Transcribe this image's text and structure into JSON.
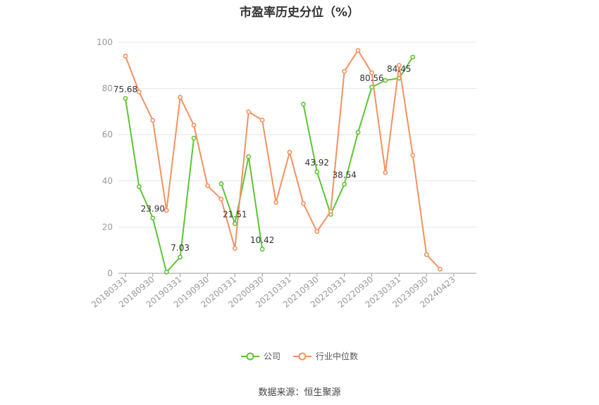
{
  "chart_data": {
    "type": "line",
    "title": "市盈率历史分位（%）",
    "x": [
      "20180331",
      "20180630",
      "20180930",
      "20181231",
      "20190331",
      "20190630",
      "20190930",
      "20191231",
      "20200331",
      "20200630",
      "20200930",
      "20201231",
      "20210331",
      "20210630",
      "20210930",
      "20211231",
      "20220331",
      "20220630",
      "20220930",
      "20221231",
      "20230331",
      "20230630",
      "20230930",
      "20231231",
      "20240423"
    ],
    "xtick_labels": [
      "20180331",
      "20180930",
      "20190331",
      "20190930",
      "20200331",
      "20200930",
      "20210331",
      "20210930",
      "20220331",
      "20220930",
      "20230331",
      "20230930",
      "20240423"
    ],
    "ylim": [
      0,
      100
    ],
    "yticks": [
      0,
      20,
      40,
      60,
      80,
      100
    ],
    "grid": true,
    "legend_position": "bottom",
    "series": [
      {
        "name": "公司",
        "color": "#5cc534",
        "values": [
          75.68,
          37.5,
          23.9,
          0.5,
          7.03,
          58.5,
          null,
          38.8,
          21.51,
          50.5,
          10.42,
          null,
          null,
          73.2,
          43.92,
          25.5,
          38.54,
          61.0,
          80.56,
          83.5,
          84.45,
          93.6,
          null,
          null,
          null
        ],
        "labels": [
          {
            "index": 0,
            "text": "75.68"
          },
          {
            "index": 2,
            "text": "23.90"
          },
          {
            "index": 4,
            "text": "7.03"
          },
          {
            "index": 8,
            "text": "21.51"
          },
          {
            "index": 10,
            "text": "10.42"
          },
          {
            "index": 14,
            "text": "43.92"
          },
          {
            "index": 16,
            "text": "38.54"
          },
          {
            "index": 18,
            "text": "80.56"
          },
          {
            "index": 20,
            "text": "84.45"
          }
        ]
      },
      {
        "name": "行业中位数",
        "color": "#f4915e",
        "values": [
          94.0,
          78.5,
          66.2,
          27.2,
          76.2,
          64.1,
          37.9,
          32.1,
          10.8,
          69.9,
          66.3,
          30.7,
          52.4,
          30.2,
          18.1,
          26.8,
          87.4,
          96.5,
          86.8,
          43.6,
          90.0,
          51.1,
          8.1,
          1.8,
          null
        ]
      }
    ]
  },
  "source_text": "数据来源：恒生聚源"
}
